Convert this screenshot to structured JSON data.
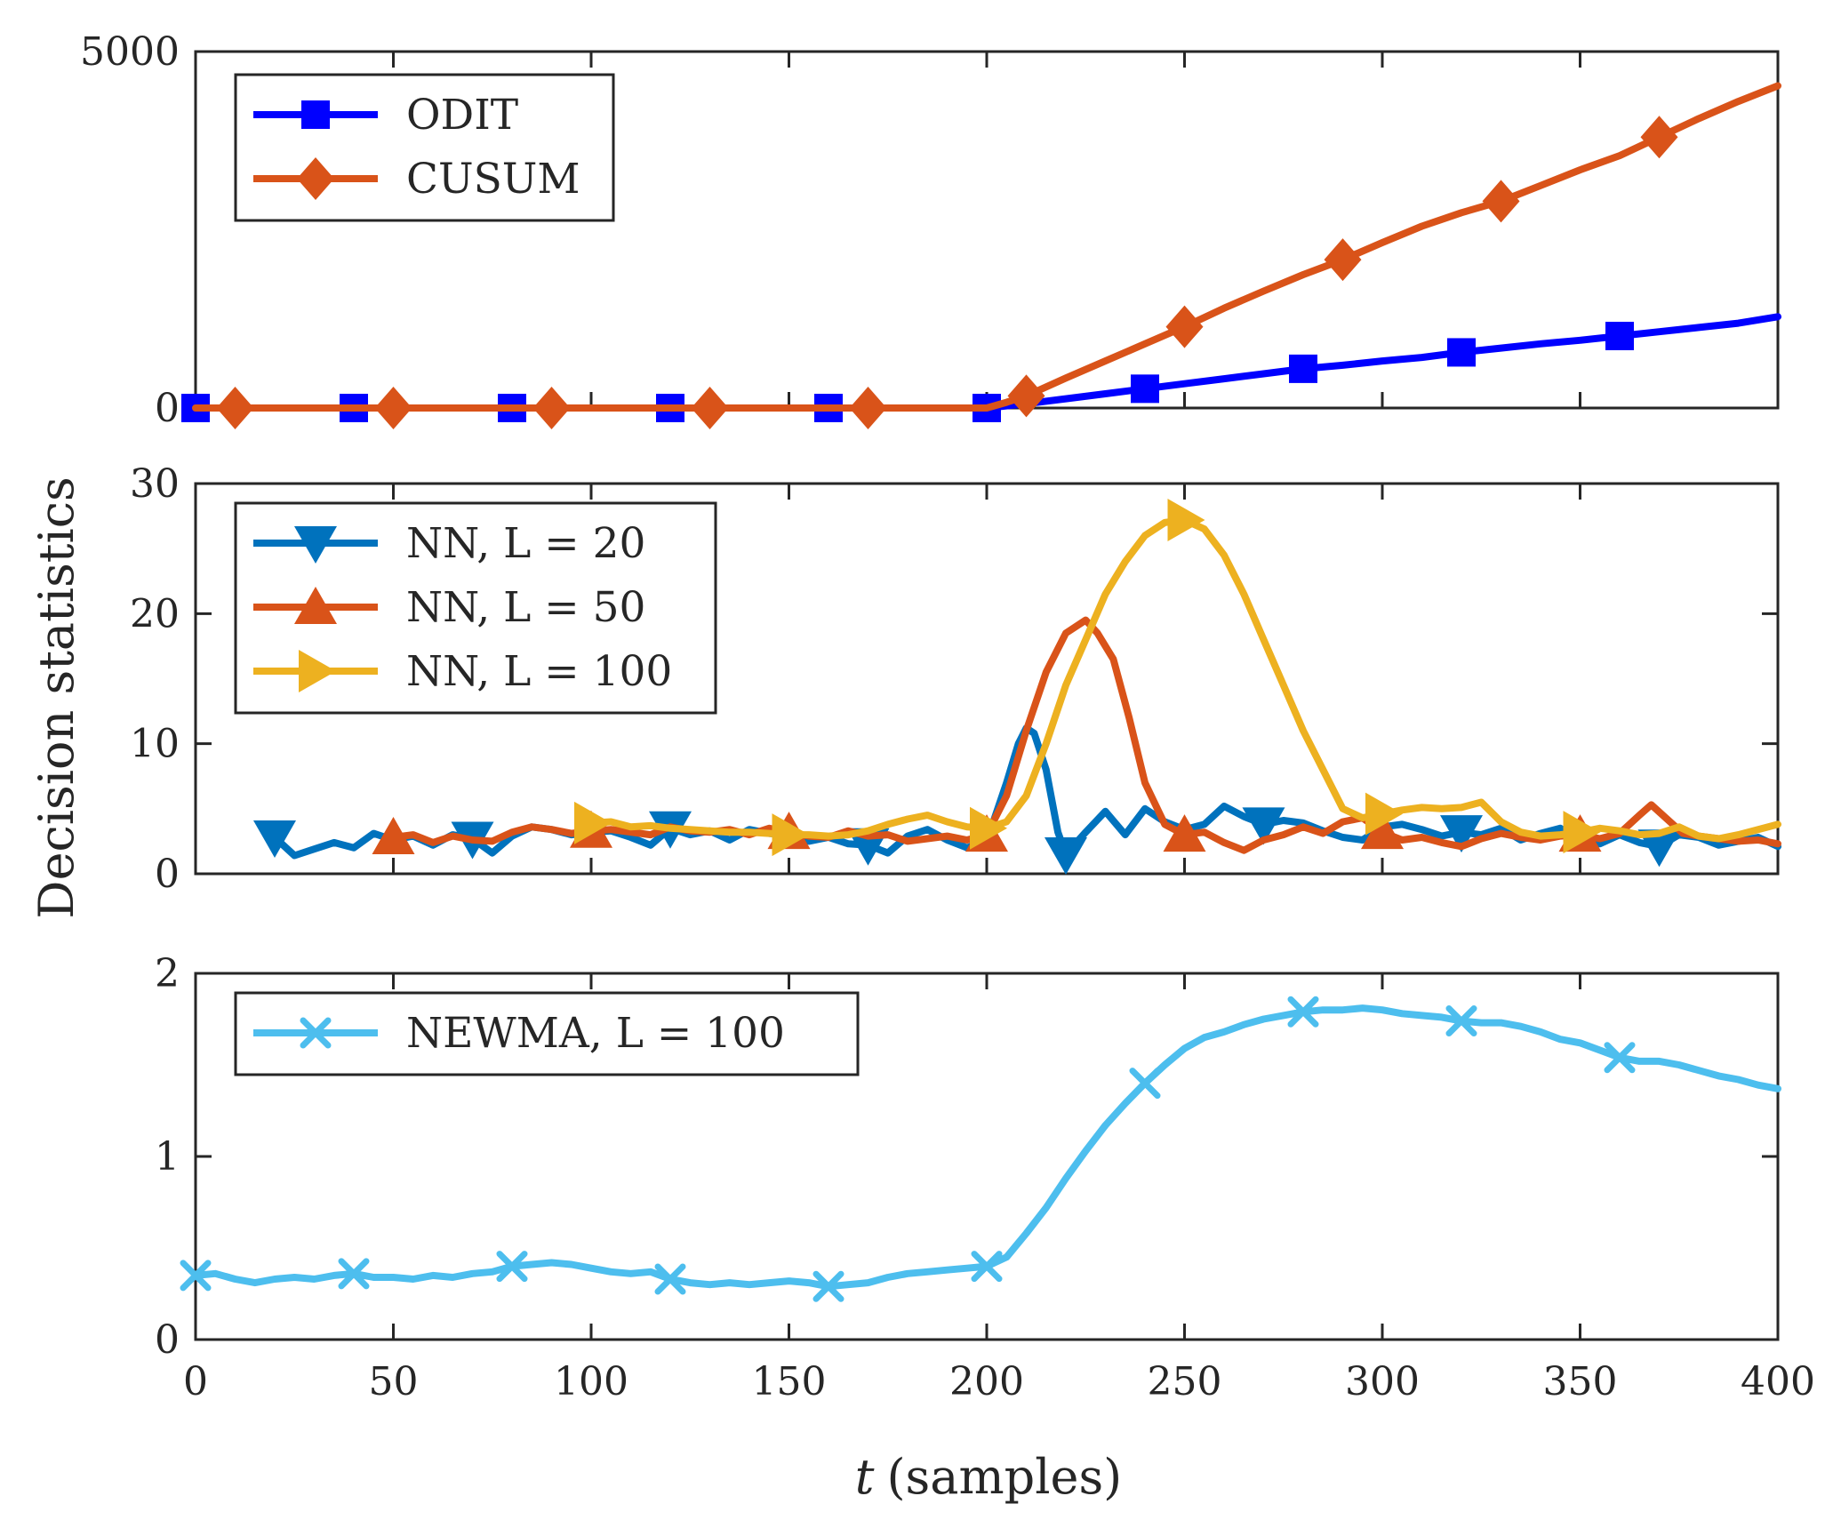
{
  "chart_data": [
    {
      "type": "line",
      "ylabel": "Decision statistics",
      "xlim": [
        0,
        400
      ],
      "ylim": [
        0,
        5000
      ],
      "yticks": [
        0,
        5000
      ],
      "xticks": [],
      "series": [
        {
          "name": "ODIT",
          "color": "#0000ff",
          "marker": "square",
          "x": [
            0,
            20,
            40,
            60,
            80,
            100,
            120,
            140,
            160,
            180,
            200,
            210,
            220,
            230,
            240,
            250,
            260,
            270,
            280,
            290,
            300,
            310,
            320,
            330,
            340,
            350,
            360,
            370,
            380,
            390,
            400
          ],
          "y": [
            0,
            0,
            0,
            0,
            0,
            0,
            0,
            0,
            0,
            0,
            0,
            60,
            130,
            200,
            270,
            340,
            410,
            480,
            550,
            600,
            660,
            710,
            780,
            840,
            900,
            950,
            1010,
            1070,
            1130,
            1190,
            1280
          ],
          "marker_x": [
            0,
            40,
            80,
            120,
            160,
            200,
            240,
            280,
            320,
            360
          ]
        },
        {
          "name": "CUSUM",
          "color": "#d95319",
          "marker": "diamond",
          "x": [
            0,
            50,
            100,
            150,
            200,
            205,
            210,
            220,
            230,
            240,
            250,
            260,
            270,
            280,
            290,
            300,
            310,
            320,
            330,
            340,
            350,
            360,
            370,
            380,
            390,
            400
          ],
          "y": [
            0,
            0,
            0,
            0,
            0,
            80,
            170,
            420,
            660,
            900,
            1140,
            1400,
            1640,
            1870,
            2080,
            2320,
            2550,
            2740,
            2900,
            3120,
            3340,
            3540,
            3800,
            4060,
            4300,
            4520
          ],
          "marker_x": [
            10,
            50,
            90,
            130,
            170,
            210,
            250,
            290,
            330,
            370
          ]
        }
      ]
    },
    {
      "type": "line",
      "xlim": [
        0,
        400
      ],
      "ylim": [
        0,
        30
      ],
      "yticks": [
        0,
        10,
        20,
        30
      ],
      "xticks": [],
      "series": [
        {
          "name": "NN, L = 20",
          "color": "#0072bd",
          "marker": "triangle-down",
          "x": [
            20,
            25,
            30,
            35,
            40,
            45,
            50,
            55,
            60,
            65,
            70,
            75,
            80,
            85,
            90,
            95,
            100,
            105,
            110,
            115,
            120,
            125,
            130,
            135,
            140,
            145,
            150,
            155,
            160,
            165,
            170,
            175,
            180,
            185,
            190,
            195,
            200,
            205,
            208,
            210,
            212,
            215,
            218,
            220,
            225,
            230,
            235,
            240,
            245,
            250,
            255,
            260,
            265,
            270,
            275,
            280,
            285,
            290,
            295,
            300,
            305,
            310,
            315,
            320,
            325,
            330,
            335,
            340,
            345,
            350,
            355,
            360,
            365,
            370,
            375,
            380,
            385,
            390,
            395,
            400
          ],
          "y": [
            2.8,
            1.4,
            1.9,
            2.4,
            2.0,
            3.1,
            2.6,
            2.9,
            2.2,
            3.0,
            2.7,
            1.6,
            2.9,
            3.6,
            3.4,
            3.0,
            3.2,
            3.3,
            2.8,
            2.2,
            3.5,
            3.0,
            3.3,
            2.6,
            3.4,
            3.1,
            3.0,
            2.5,
            2.8,
            2.3,
            2.2,
            1.6,
            2.9,
            3.4,
            2.6,
            2.0,
            2.5,
            7.0,
            10.0,
            11.2,
            10.8,
            8.0,
            3.2,
            1.5,
            3.2,
            4.8,
            3.0,
            5.0,
            4.0,
            3.4,
            3.8,
            5.2,
            4.4,
            3.8,
            4.1,
            3.9,
            3.3,
            2.8,
            2.6,
            3.6,
            3.8,
            3.4,
            2.9,
            3.2,
            3.0,
            3.5,
            2.6,
            3.1,
            3.5,
            2.5,
            2.3,
            3.0,
            2.4,
            2.1,
            3.0,
            2.8,
            2.2,
            2.5,
            2.8,
            2.1
          ],
          "marker_x": [
            20,
            70,
            120,
            170,
            220,
            270,
            320,
            370
          ]
        },
        {
          "name": "NN, L = 50",
          "color": "#d95319",
          "marker": "triangle-up",
          "x": [
            50,
            55,
            60,
            65,
            70,
            75,
            80,
            85,
            90,
            95,
            100,
            105,
            110,
            115,
            120,
            125,
            130,
            135,
            140,
            145,
            150,
            155,
            160,
            165,
            170,
            175,
            180,
            185,
            190,
            195,
            200,
            205,
            210,
            215,
            220,
            225,
            228,
            232,
            236,
            240,
            245,
            250,
            255,
            260,
            265,
            270,
            275,
            280,
            285,
            290,
            295,
            300,
            305,
            310,
            315,
            320,
            325,
            330,
            335,
            340,
            345,
            350,
            355,
            360,
            365,
            368,
            372,
            376,
            380,
            385,
            390,
            395,
            400
          ],
          "y": [
            2.8,
            3.0,
            2.4,
            2.9,
            2.6,
            2.5,
            3.2,
            3.6,
            3.4,
            3.1,
            3.3,
            3.4,
            3.2,
            3.0,
            3.6,
            3.3,
            3.2,
            3.4,
            3.0,
            3.5,
            3.2,
            2.9,
            2.8,
            3.3,
            2.9,
            3.0,
            2.5,
            2.7,
            2.9,
            2.6,
            3.0,
            6.0,
            11.0,
            15.5,
            18.5,
            19.5,
            18.5,
            16.5,
            12.0,
            7.0,
            3.8,
            3.0,
            3.2,
            2.4,
            1.8,
            2.6,
            3.0,
            3.6,
            3.1,
            4.0,
            4.3,
            3.2,
            2.6,
            2.8,
            2.4,
            2.1,
            2.7,
            3.1,
            2.8,
            2.6,
            2.9,
            3.0,
            2.7,
            3.1,
            4.5,
            5.3,
            4.2,
            3.1,
            2.9,
            2.7,
            2.5,
            2.6,
            2.3
          ],
          "marker_x": [
            50,
            100,
            150,
            200,
            250,
            300,
            350
          ]
        },
        {
          "name": "NN, L = 100",
          "color": "#edb120",
          "marker": "triangle-right",
          "x": [
            100,
            105,
            110,
            115,
            120,
            125,
            130,
            135,
            140,
            145,
            150,
            155,
            160,
            165,
            170,
            175,
            180,
            185,
            190,
            195,
            200,
            205,
            210,
            215,
            220,
            225,
            230,
            235,
            240,
            245,
            250,
            255,
            260,
            265,
            270,
            275,
            280,
            285,
            290,
            295,
            300,
            305,
            310,
            315,
            320,
            325,
            330,
            335,
            340,
            345,
            350,
            355,
            360,
            365,
            370,
            375,
            380,
            385,
            390,
            395,
            400
          ],
          "y": [
            3.9,
            4.0,
            3.6,
            3.7,
            3.5,
            3.4,
            3.3,
            3.2,
            3.2,
            3.1,
            3.0,
            3.0,
            2.9,
            3.0,
            3.3,
            3.8,
            4.2,
            4.5,
            4.0,
            3.6,
            3.5,
            4.0,
            6.0,
            10.0,
            14.5,
            18.0,
            21.5,
            24.0,
            26.0,
            27.0,
            27.2,
            26.5,
            24.5,
            21.5,
            18.0,
            14.5,
            11.0,
            8.0,
            5.0,
            4.3,
            4.6,
            4.9,
            5.1,
            5.0,
            5.1,
            5.5,
            4.0,
            3.2,
            2.9,
            3.0,
            3.2,
            3.5,
            3.3,
            3.0,
            3.1,
            3.6,
            2.9,
            2.7,
            3.0,
            3.4,
            3.8
          ],
          "marker_x": [
            100,
            150,
            200,
            250,
            300,
            350
          ]
        }
      ]
    },
    {
      "type": "line",
      "xlabel_var": "t",
      "xlabel": "(samples)",
      "xlim": [
        0,
        400
      ],
      "ylim": [
        0,
        2
      ],
      "yticks": [
        0,
        1,
        2
      ],
      "xticks": [
        0,
        50,
        100,
        150,
        200,
        250,
        300,
        350,
        400
      ],
      "series": [
        {
          "name": "NEWMA, L = 100",
          "color": "#4dbeee",
          "marker": "x",
          "x": [
            0,
            5,
            10,
            15,
            20,
            25,
            30,
            35,
            40,
            45,
            50,
            55,
            60,
            65,
            70,
            75,
            80,
            85,
            90,
            95,
            100,
            105,
            110,
            115,
            120,
            125,
            130,
            135,
            140,
            145,
            150,
            155,
            160,
            165,
            170,
            175,
            180,
            185,
            190,
            195,
            200,
            205,
            210,
            215,
            220,
            225,
            230,
            235,
            240,
            245,
            250,
            255,
            260,
            265,
            270,
            275,
            280,
            285,
            290,
            295,
            300,
            305,
            310,
            315,
            320,
            325,
            330,
            335,
            340,
            345,
            350,
            355,
            360,
            365,
            370,
            375,
            380,
            385,
            390,
            395,
            400
          ],
          "y": [
            0.35,
            0.36,
            0.33,
            0.31,
            0.33,
            0.34,
            0.33,
            0.35,
            0.36,
            0.34,
            0.34,
            0.33,
            0.35,
            0.34,
            0.36,
            0.37,
            0.4,
            0.41,
            0.42,
            0.41,
            0.39,
            0.37,
            0.36,
            0.37,
            0.33,
            0.31,
            0.3,
            0.31,
            0.3,
            0.31,
            0.32,
            0.31,
            0.29,
            0.3,
            0.31,
            0.34,
            0.36,
            0.37,
            0.38,
            0.39,
            0.4,
            0.45,
            0.58,
            0.72,
            0.88,
            1.03,
            1.17,
            1.29,
            1.4,
            1.5,
            1.59,
            1.65,
            1.68,
            1.72,
            1.75,
            1.77,
            1.79,
            1.8,
            1.8,
            1.81,
            1.8,
            1.78,
            1.77,
            1.76,
            1.74,
            1.73,
            1.73,
            1.71,
            1.68,
            1.64,
            1.62,
            1.58,
            1.54,
            1.52,
            1.52,
            1.5,
            1.47,
            1.44,
            1.42,
            1.39,
            1.37
          ],
          "marker_x": [
            0,
            40,
            80,
            120,
            160,
            200,
            240,
            280,
            320,
            360
          ]
        }
      ]
    }
  ]
}
